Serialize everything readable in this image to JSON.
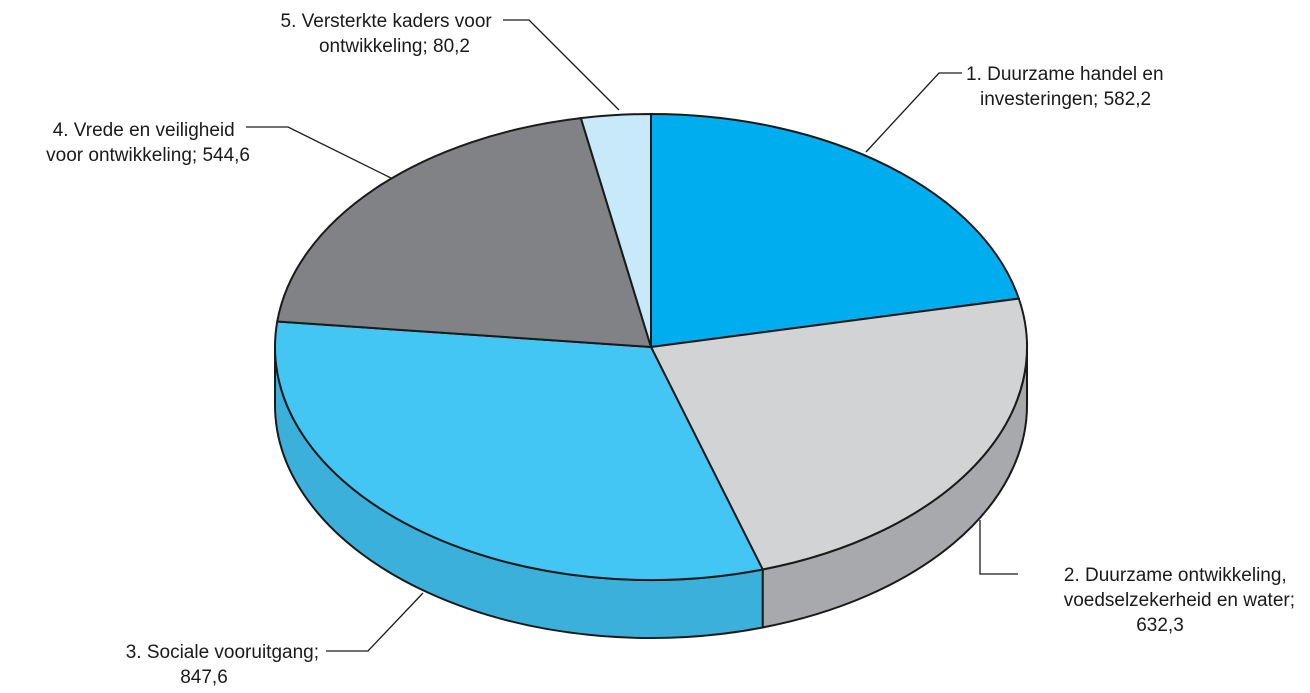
{
  "chart_data": {
    "type": "pie",
    "style": "3d",
    "title": "",
    "slices": [
      {
        "id": 1,
        "line1": "1. Duurzame handel en",
        "line2": "investeringen; 582,2",
        "line3": "",
        "value": 582.2,
        "color": "#00AEEF",
        "side_color": "#0095CC"
      },
      {
        "id": 2,
        "line1": "2. Duurzame ontwikkeling,",
        "line2": "voedselzekerheid en water;",
        "line3": "632,3",
        "value": 632.3,
        "color": "#D1D3D4",
        "side_color": "#A7A9AC"
      },
      {
        "id": 3,
        "line1": "3. Sociale vooruitgang;",
        "line2": "847,6",
        "line3": "",
        "value": 847.6,
        "color": "#43C6F4",
        "side_color": "#3BB0DA"
      },
      {
        "id": 4,
        "line1": "4. Vrede en veiligheid",
        "line2": "voor ontwikkeling; 544,6",
        "line3": "",
        "value": 544.6,
        "color": "#808285",
        "side_color": "#6D6E71"
      },
      {
        "id": 5,
        "line1": "5. Versterkte kaders voor",
        "line2": "ontwikkeling; 80,2",
        "line3": "",
        "value": 80.2,
        "color": "#C8E9F9",
        "side_color": "#A9D8EE"
      }
    ],
    "legend": "none",
    "start_angle_deg": 0,
    "direction": "clockwise"
  }
}
